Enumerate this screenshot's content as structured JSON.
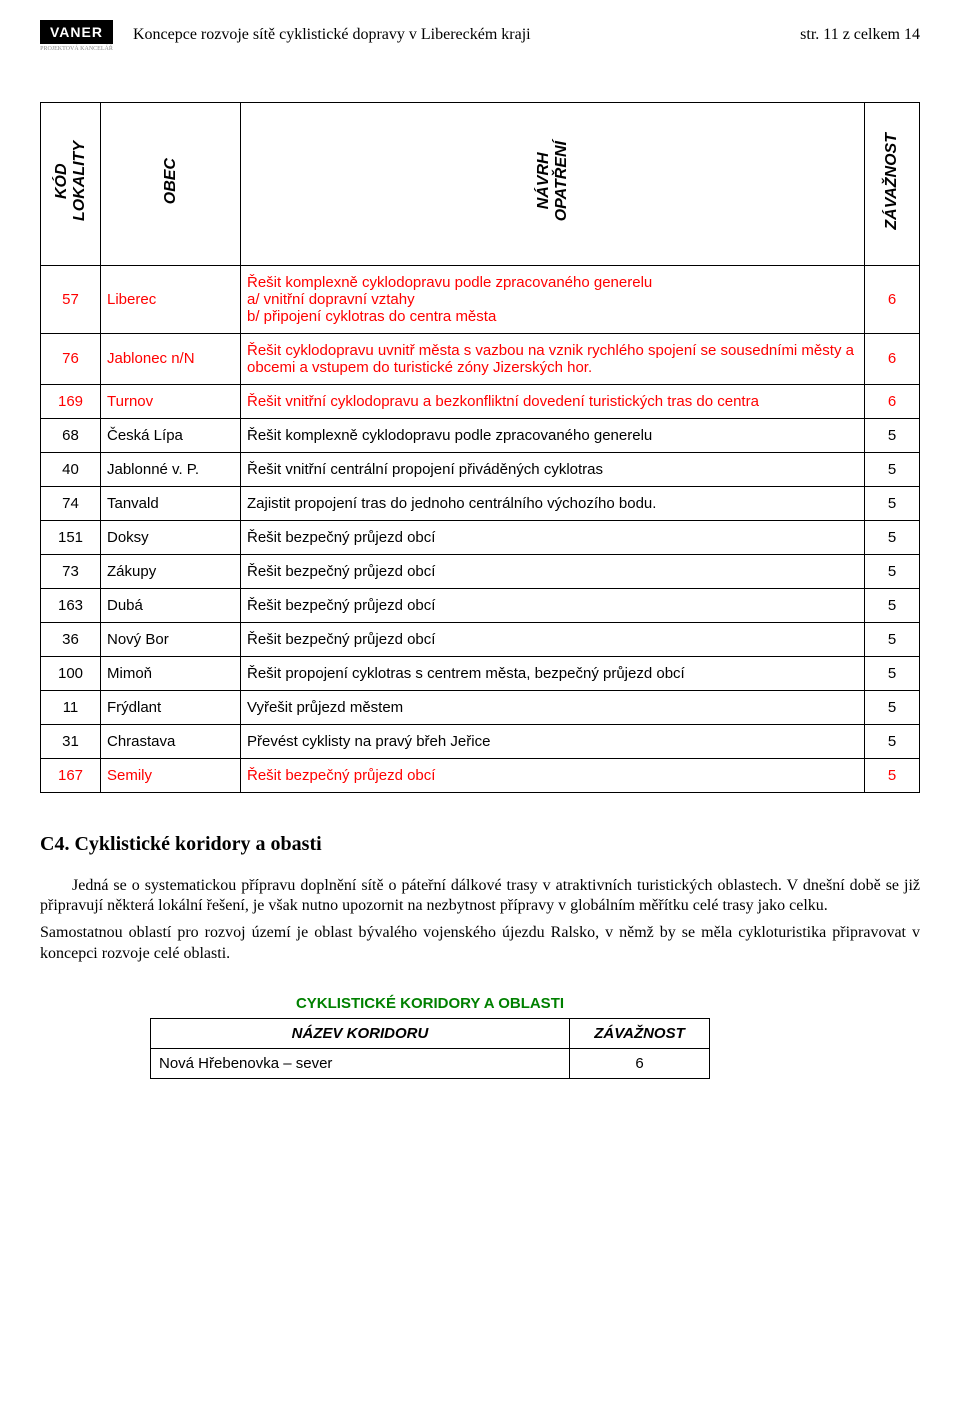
{
  "header": {
    "logo_text": "VANER",
    "logo_sub": "PROJEKTOVÁ KANCELÁŘ",
    "title": "Koncepce rozvoje sítě cyklistické dopravy v Libereckém kraji",
    "page_info": "str.  11 z celkem 14"
  },
  "table": {
    "headers": {
      "kod": "KÓD\nLOKALITY",
      "obec": "OBEC",
      "navrh": "NÁVRH\nOPATŘENÍ",
      "zav": "ZÁVAŽNOST"
    },
    "rows": [
      {
        "red": true,
        "kod": "57",
        "obec": "Liberec",
        "navrh": "Řešit komplexně cyklodopravu podle zpracovaného generelu\na/  vnitřní dopravní vztahy\nb/ připojení cyklotras do centra města",
        "zav": "6"
      },
      {
        "red": true,
        "kod": "76",
        "obec": "Jablonec n/N",
        "navrh": "Řešit cyklodopravu uvnitř města s vazbou na vznik rychlého spojení se sousedními městy a obcemi a vstupem do turistické zóny Jizerských hor.",
        "zav": "6"
      },
      {
        "red": true,
        "kod": "169",
        "obec": "Turnov",
        "navrh": "Řešit vnitřní cyklodopravu a bezkonfliktní dovedení turistických tras do centra",
        "zav": "6"
      },
      {
        "red": false,
        "kod": "68",
        "obec": "Česká Lípa",
        "navrh": "Řešit komplexně cyklodopravu podle zpracovaného generelu",
        "zav": "5"
      },
      {
        "red": false,
        "kod": "40",
        "obec": "Jablonné v. P.",
        "navrh": "Řešit vnitřní centrální propojení přiváděných cyklotras",
        "zav": "5"
      },
      {
        "red": false,
        "kod": "74",
        "obec": "Tanvald",
        "navrh": "Zajistit propojení tras do jednoho centrálního výchozího bodu.",
        "zav": "5"
      },
      {
        "red": false,
        "kod": "151",
        "obec": "Doksy",
        "navrh": "Řešit bezpečný průjezd obcí",
        "zav": "5"
      },
      {
        "red": false,
        "kod": "73",
        "obec": "Zákupy",
        "navrh": "Řešit bezpečný průjezd obcí",
        "zav": "5"
      },
      {
        "red": false,
        "kod": "163",
        "obec": "Dubá",
        "navrh": "Řešit bezpečný průjezd obcí",
        "zav": "5"
      },
      {
        "red": false,
        "kod": "36",
        "obec": "Nový Bor",
        "navrh": "Řešit bezpečný průjezd obcí",
        "zav": "5"
      },
      {
        "red": false,
        "kod": "100",
        "obec": "Mimoň",
        "navrh": "Řešit propojení cyklotras s centrem města, bezpečný průjezd obcí",
        "zav": "5"
      },
      {
        "red": false,
        "kod": "11",
        "obec": "Frýdlant",
        "navrh": "Vyřešit průjezd městem",
        "zav": "5"
      },
      {
        "red": false,
        "kod": "31",
        "obec": "Chrastava",
        "navrh": "Převést cyklisty na pravý břeh Jeřice",
        "zav": "5"
      },
      {
        "red": true,
        "kod": "167",
        "obec": "Semily",
        "navrh": "Řešit bezpečný průjezd obcí",
        "zav": "5"
      }
    ]
  },
  "section": {
    "heading": "C4. Cyklistické koridory a obasti",
    "p1": "Jedná se o systematickou přípravu  doplnění sítě o páteřní dálkové trasy v atraktivních turistických oblastech. V dnešní době se již připravují některá lokální řešení, je však nutno upozornit na  nezbytnost přípravy v globálním  měřítku celé trasy jako celku.",
    "p2": "Samostatnou oblastí pro rozvoj území je oblast bývalého vojenského újezdu Ralsko, v němž by se měla cykloturistika  připravovat v koncepci rozvoje celé oblasti."
  },
  "corridor": {
    "title": "CYKLISTICKÉ KORIDORY A OBLASTI",
    "headers": {
      "nazev": "NÁZEV KORIDORU",
      "zav": "ZÁVAŽNOST"
    },
    "rows": [
      {
        "nazev": "Nová Hřebenovka – sever",
        "zav": "6"
      }
    ]
  },
  "colors": {
    "red": "#ff0000",
    "green": "#008000",
    "text": "#000000",
    "background": "#ffffff"
  }
}
